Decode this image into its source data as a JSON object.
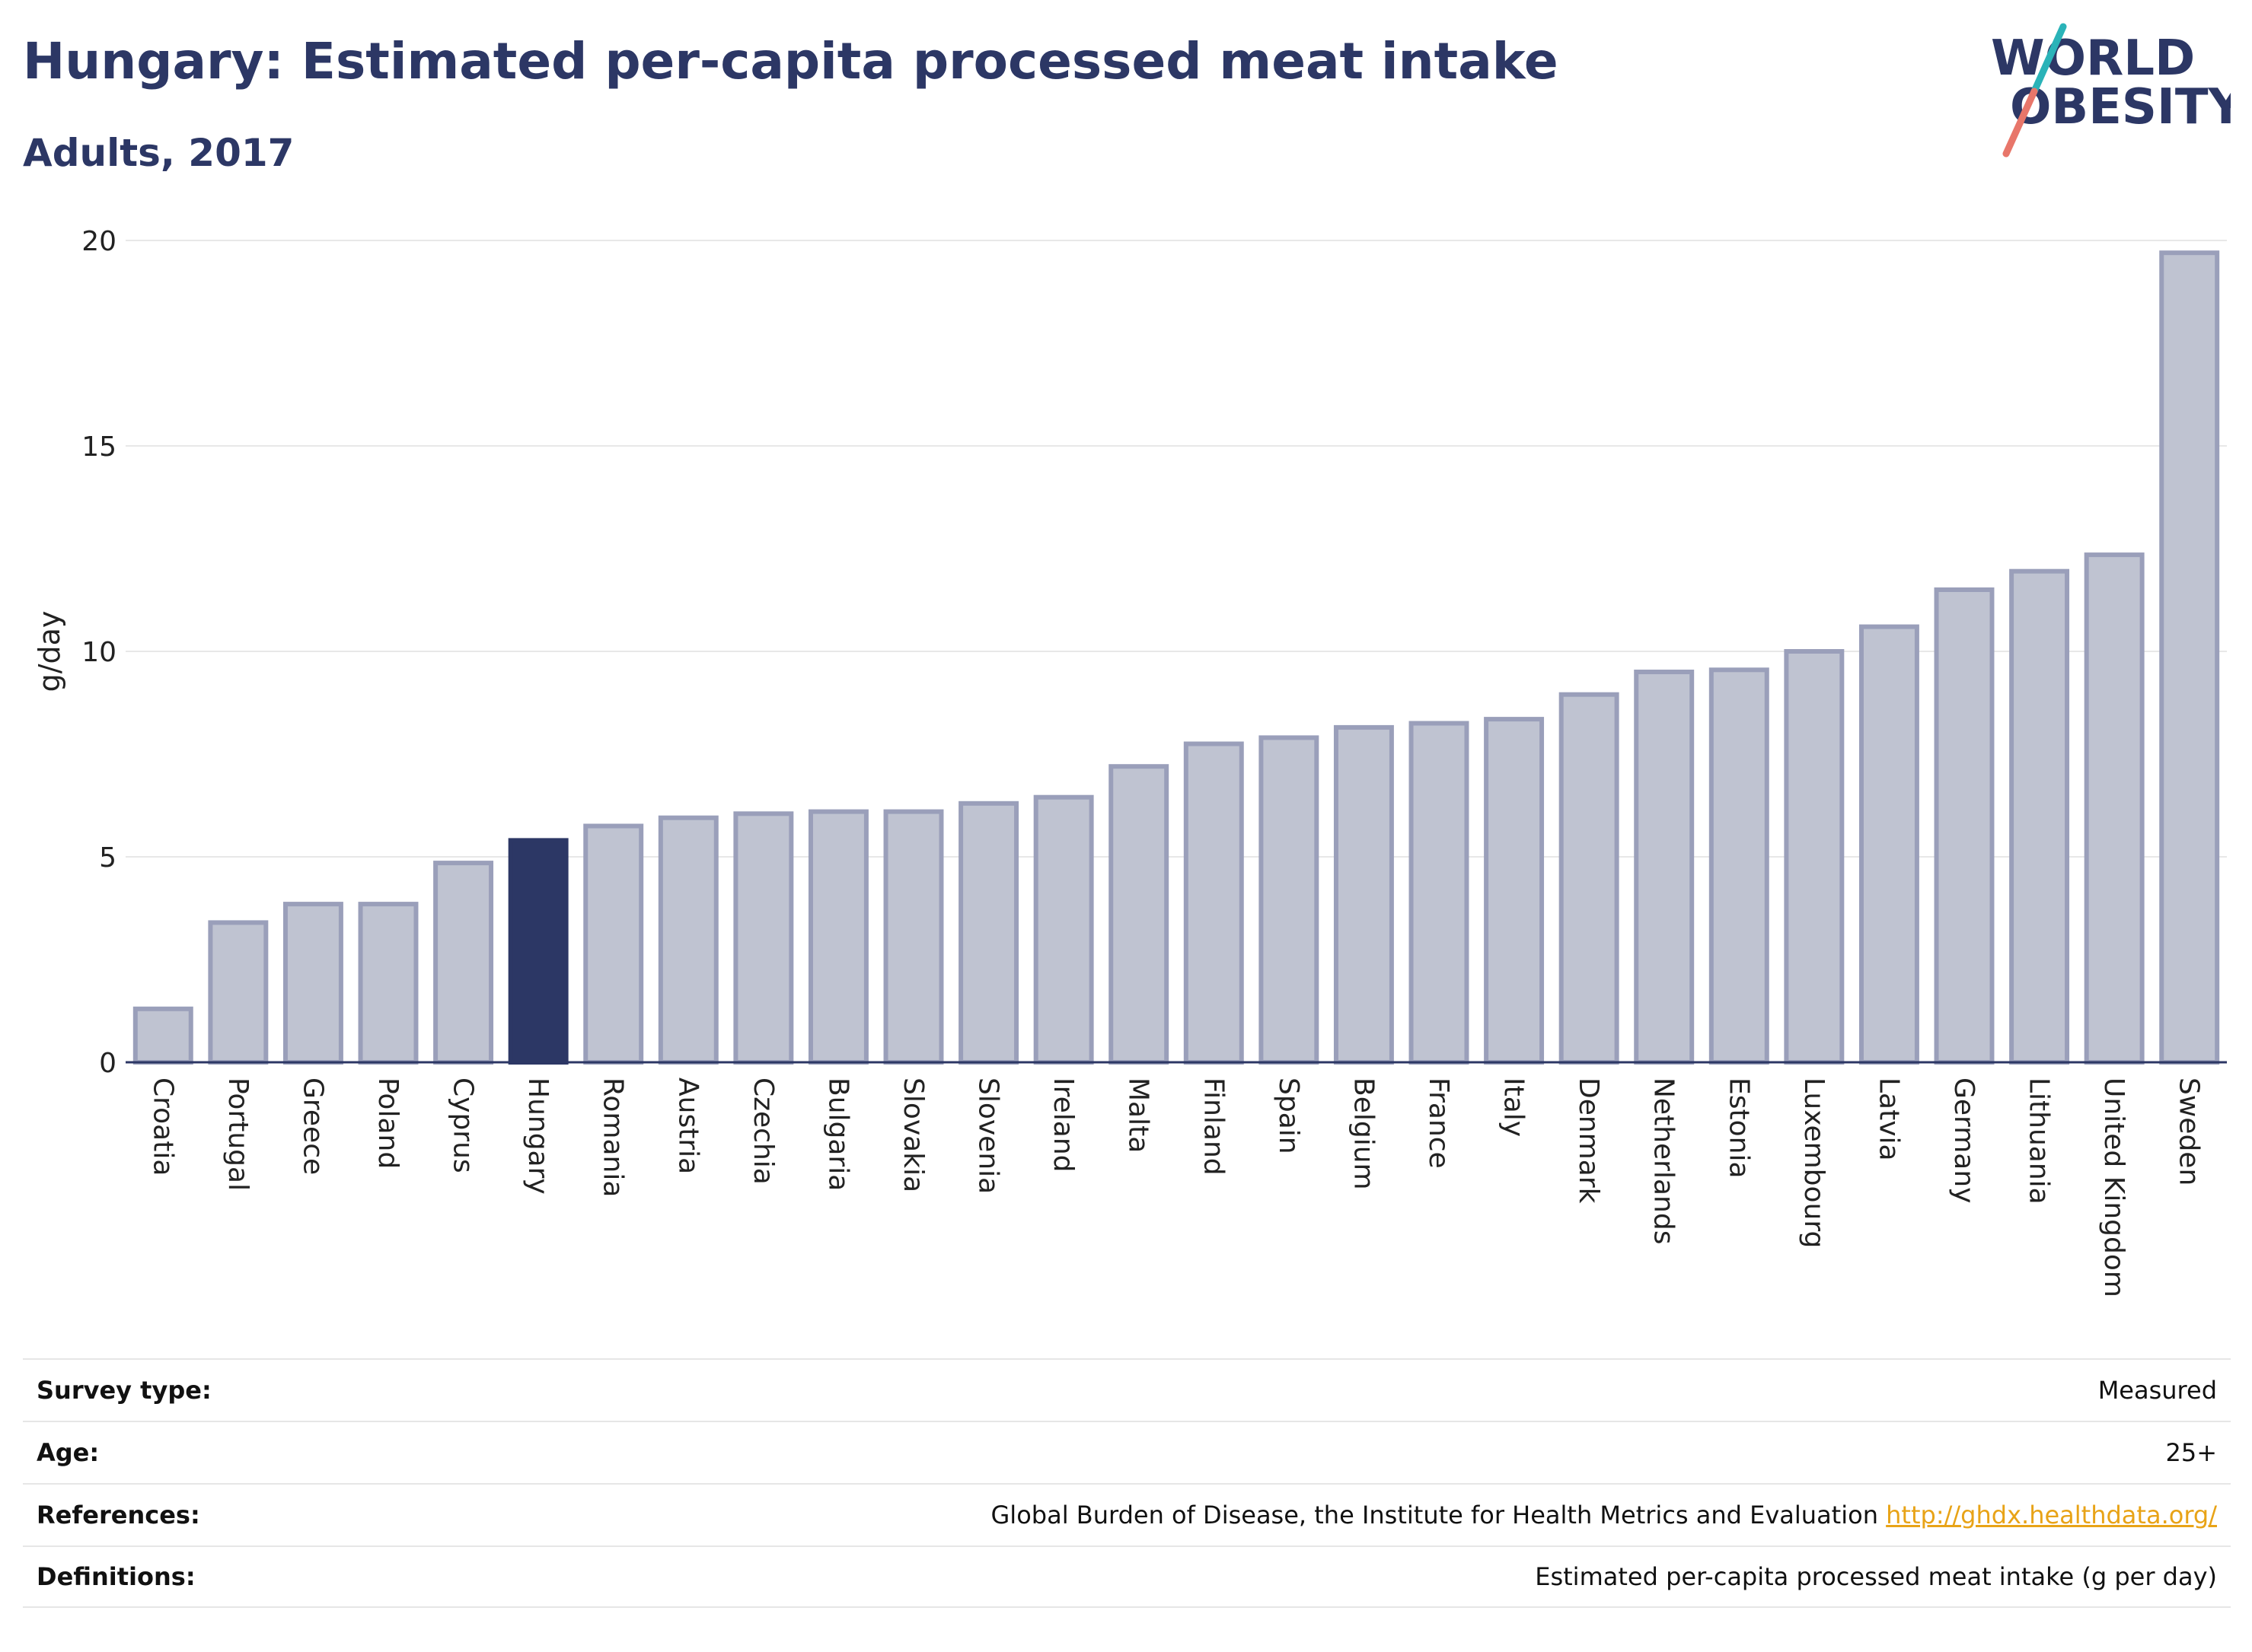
{
  "header": {
    "title": "Hungary: Estimated per-capita processed meat intake",
    "subtitle": "Adults, 2017"
  },
  "logo": {
    "line1": "WORLD",
    "line2": "OBESITY"
  },
  "colors": {
    "highlight": "#2c3765",
    "bar_fill": "#bfc3d1",
    "bar_stroke": "#9a9fba",
    "logo_teal": "#2ab3b8",
    "logo_coral": "#e8766a",
    "link": "#e8a317"
  },
  "chart_data": {
    "type": "bar",
    "title": "Hungary: Estimated per-capita processed meat intake",
    "subtitle": "Adults, 2017",
    "xlabel": "",
    "ylabel": "g/day",
    "ylim": [
      0,
      20
    ],
    "yticks": [
      0,
      5,
      10,
      15,
      20
    ],
    "grid": true,
    "highlight": "Hungary",
    "categories": [
      "Croatia",
      "Portugal",
      "Greece",
      "Poland",
      "Cyprus",
      "Hungary",
      "Romania",
      "Austria",
      "Czechia",
      "Bulgaria",
      "Slovakia",
      "Slovenia",
      "Ireland",
      "Malta",
      "Finland",
      "Spain",
      "Belgium",
      "France",
      "Italy",
      "Denmark",
      "Netherlands",
      "Estonia",
      "Luxembourg",
      "Latvia",
      "Germany",
      "Lithuania",
      "United Kingdom",
      "Sweden"
    ],
    "values": [
      1.3,
      3.4,
      3.85,
      3.85,
      4.85,
      5.4,
      5.75,
      5.95,
      6.05,
      6.1,
      6.1,
      6.3,
      6.45,
      7.2,
      7.75,
      7.9,
      8.15,
      8.25,
      8.35,
      8.95,
      9.5,
      9.55,
      10.0,
      10.6,
      11.5,
      11.95,
      12.35,
      19.7
    ]
  },
  "meta": {
    "survey_type_label": "Survey type:",
    "survey_type_value": "Measured",
    "age_label": "Age:",
    "age_value": "25+",
    "references_label": "References:",
    "references_value": "Global Burden of Disease, the Institute for Health Metrics and Evaluation",
    "references_link": "http://ghdx.healthdata.org/",
    "definitions_label": "Definitions:",
    "definitions_value": "Estimated per-capita processed meat intake (g per day)"
  }
}
